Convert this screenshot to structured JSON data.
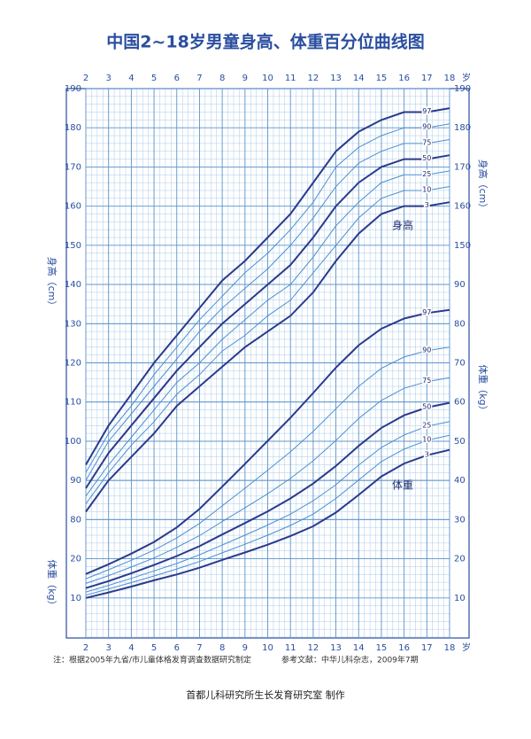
{
  "chart_data": {
    "type": "line",
    "title": "中国2~18岁男童身高、体重百分位曲线图",
    "x": [
      2,
      3,
      4,
      5,
      6,
      7,
      8,
      9,
      10,
      11,
      12,
      13,
      14,
      15,
      16,
      17,
      18
    ],
    "xlim": [
      2,
      18
    ],
    "xticks": [
      2,
      3,
      4,
      5,
      6,
      7,
      8,
      9,
      10,
      11,
      12,
      13,
      14,
      15,
      16,
      17,
      18
    ],
    "x_unit": "岁",
    "ylim": [
      50,
      190
    ],
    "yticks": [
      80,
      90,
      100,
      110,
      120,
      130,
      140,
      150,
      160,
      170,
      180,
      190
    ],
    "yticks_right": [
      150,
      160,
      170,
      180,
      190
    ],
    "y_label": "身高（cm）",
    "y2lim": [
      0,
      140
    ],
    "y2ticks": [
      10,
      20,
      30,
      40,
      50,
      60,
      70,
      80,
      90
    ],
    "y2ticks_left": [
      10,
      20
    ],
    "y2_label": "体重（kg）",
    "height_label": "身高",
    "weight_label": "体重",
    "grid": true,
    "series": [
      {
        "name": "97",
        "color": "#2b3a8c",
        "axis": "y",
        "values": [
          94,
          104,
          112,
          120,
          127,
          134,
          141,
          146,
          152,
          158,
          166,
          174,
          179,
          182,
          184,
          184,
          185
        ]
      },
      {
        "name": "90",
        "color": "#4a8fd0",
        "axis": "y",
        "values": [
          92,
          102,
          109,
          117,
          124,
          131,
          137,
          143,
          148,
          154,
          161,
          170,
          175,
          178,
          180,
          180,
          181
        ]
      },
      {
        "name": "75",
        "color": "#4a8fd0",
        "axis": "y",
        "values": [
          90,
          100,
          107,
          114,
          121,
          128,
          134,
          139,
          144,
          150,
          157,
          165,
          171,
          174,
          176,
          176,
          177
        ]
      },
      {
        "name": "50",
        "color": "#2b3a8c",
        "axis": "y",
        "values": [
          88,
          97,
          104,
          111,
          118,
          124,
          130,
          135,
          140,
          145,
          152,
          160,
          166,
          170,
          172,
          172,
          173
        ]
      },
      {
        "name": "25",
        "color": "#4a8fd0",
        "axis": "y",
        "values": [
          86,
          94,
          101,
          108,
          115,
          120,
          126,
          131,
          136,
          140,
          147,
          155,
          161,
          166,
          168,
          168,
          169
        ]
      },
      {
        "name": "10",
        "color": "#4a8fd0",
        "axis": "y",
        "values": [
          84,
          92,
          99,
          105,
          112,
          117,
          123,
          127,
          132,
          136,
          143,
          150,
          157,
          162,
          164,
          164,
          165
        ]
      },
      {
        "name": "3",
        "color": "#2b3a8c",
        "axis": "y",
        "values": [
          82,
          90,
          96,
          102,
          109,
          114,
          119,
          124,
          128,
          132,
          138,
          146,
          153,
          158,
          160,
          160,
          161
        ]
      },
      {
        "name": "97",
        "color": "#2b3a8c",
        "axis": "y2",
        "values": [
          16.1,
          18.6,
          21.3,
          24.3,
          28.0,
          32.7,
          38.4,
          44.2,
          50.1,
          56.0,
          62.3,
          68.8,
          74.5,
          78.7,
          81.3,
          82.7,
          83.5
        ]
      },
      {
        "name": "90",
        "color": "#4a8fd0",
        "axis": "y2",
        "values": [
          14.9,
          17.2,
          19.6,
          22.2,
          25.3,
          29.0,
          33.5,
          38.0,
          42.6,
          47.3,
          52.5,
          58.3,
          64.0,
          68.6,
          71.5,
          73.1,
          74.0
        ]
      },
      {
        "name": "75",
        "color": "#4a8fd0",
        "axis": "y2",
        "values": [
          13.7,
          15.7,
          17.9,
          20.2,
          22.9,
          25.9,
          29.5,
          33.0,
          36.6,
          40.5,
          45.0,
          50.2,
          55.8,
          60.4,
          63.5,
          65.2,
          66.2
        ]
      },
      {
        "name": "50",
        "color": "#2b3a8c",
        "axis": "y2",
        "values": [
          12.5,
          14.3,
          16.3,
          18.4,
          20.7,
          23.2,
          26.2,
          29.1,
          32.1,
          35.4,
          39.2,
          43.7,
          48.8,
          53.4,
          56.6,
          58.6,
          59.8
        ]
      },
      {
        "name": "25",
        "color": "#4a8fd0",
        "axis": "y2",
        "values": [
          11.5,
          13.2,
          15.0,
          16.9,
          18.8,
          21.0,
          23.5,
          26.0,
          28.6,
          31.4,
          34.8,
          38.9,
          43.9,
          48.4,
          51.6,
          53.8,
          55.0
        ]
      },
      {
        "name": "10",
        "color": "#4a8fd0",
        "axis": "y2",
        "values": [
          10.7,
          12.3,
          13.9,
          15.6,
          17.4,
          19.3,
          21.5,
          23.7,
          26.0,
          28.5,
          31.4,
          35.4,
          40.1,
          44.8,
          48.0,
          50.2,
          51.5
        ]
      },
      {
        "name": "3",
        "color": "#2b3a8c",
        "axis": "y2",
        "values": [
          10.0,
          11.4,
          12.9,
          14.5,
          16.0,
          17.7,
          19.7,
          21.6,
          23.6,
          25.8,
          28.3,
          31.8,
          36.3,
          41.0,
          44.3,
          46.4,
          47.8
        ]
      }
    ]
  },
  "footer": {
    "note": "注：根据2005年九省/市儿童体格发育调查数据研究制定",
    "reference": "参考文献：中华儿科杂志，2009年7期",
    "maker": "首都儿科研究所生长发育研究室  制作"
  }
}
